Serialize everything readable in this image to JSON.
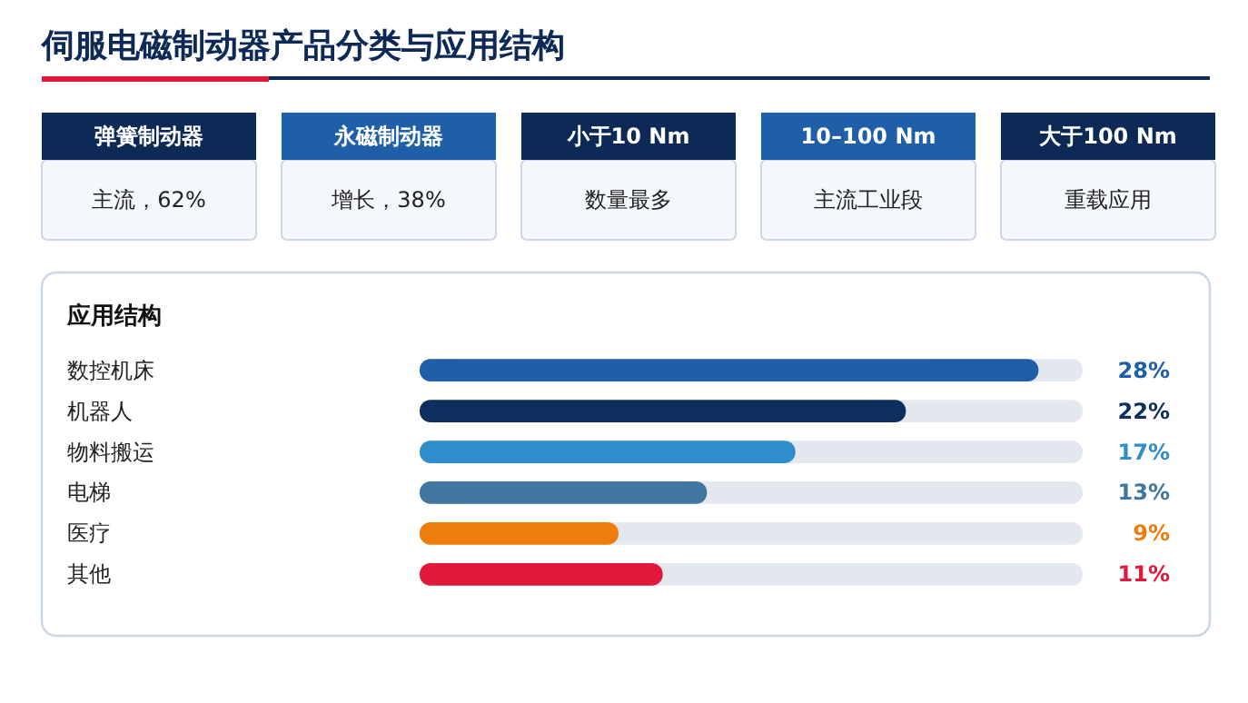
{
  "chart_data": {
    "type": "bar",
    "orientation": "horizontal",
    "title": "伺服电磁制动器产品分类与应用结构",
    "subtitle": "应用结构",
    "annotations": [
      "弹簧制动器",
      "主流，62%",
      "永磁制动器",
      "增长，38%",
      "小于10 Nm",
      "数量最多",
      "10–100 Nm",
      "主流工业段",
      "大于100 Nm",
      "重载应用"
    ],
    "categories": [
      "数控机床",
      "机器人",
      "物料搬运",
      "电梯",
      "医疗",
      "其他"
    ],
    "values": [
      28,
      22,
      17,
      13,
      9,
      11
    ],
    "colors": [
      "#1f5fa8",
      "#0d2f5e",
      "#2d8ecb",
      "#3f77a0",
      "#ef7d0b",
      "#e0193a"
    ],
    "value_labels": [
      "28%",
      "22%",
      "17%",
      "13%",
      "9%",
      "11%"
    ],
    "xlim": [
      0,
      30
    ],
    "tick_labels": false
  }
}
